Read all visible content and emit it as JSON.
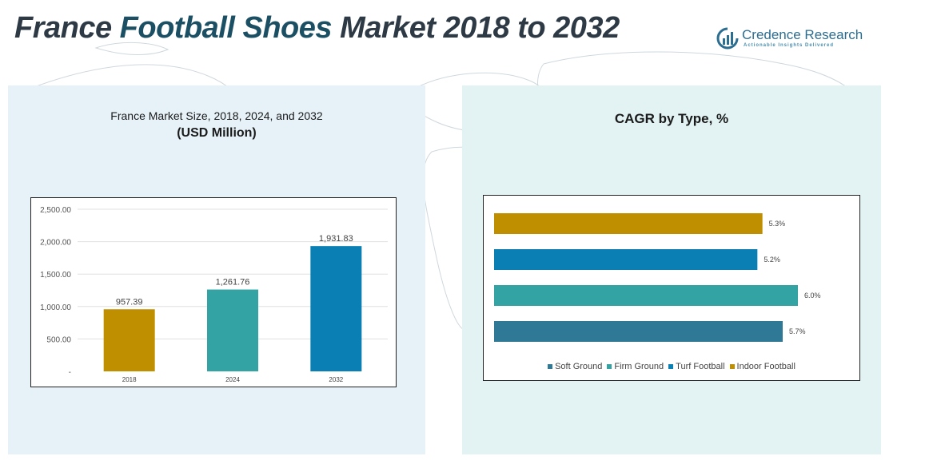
{
  "header": {
    "title_part1": "France ",
    "title_part2": "Football Shoes",
    "title_part3": " Market 2018 to 2032"
  },
  "logo": {
    "name": "Credence Research",
    "tagline": "Actionable Insights Delivered",
    "icon": "bar-chart-logo-icon",
    "color": "#2c6e91"
  },
  "left_panel": {
    "title_line1": "France Market Size, 2018, 2024, and 2032",
    "title_line2": "(USD Million)"
  },
  "right_panel": {
    "title": "CAGR by Type, %"
  },
  "chart_data": [
    {
      "type": "bar",
      "orientation": "vertical",
      "categories": [
        "2018",
        "2024",
        "2032"
      ],
      "values": [
        957.39,
        1261.76,
        1931.83
      ],
      "value_labels": [
        "957.39",
        "1,261.76",
        "1,931.83"
      ],
      "colors": [
        "#bf8f00",
        "#33a3a3",
        "#0a7fb3"
      ],
      "ylim": [
        0,
        2500
      ],
      "yticks": [
        0,
        500,
        1000,
        1500,
        2000,
        2500
      ],
      "ytick_labels": [
        "-",
        "500.00",
        "1,000.00",
        "1,500.00",
        "2,000.00",
        "2,500.00"
      ],
      "grid": true
    },
    {
      "type": "bar",
      "orientation": "horizontal",
      "categories": [
        "Indoor Football",
        "Turf Football",
        "Firm Ground",
        "Soft Ground"
      ],
      "values": [
        5.3,
        5.2,
        6.0,
        5.7
      ],
      "value_labels": [
        "5.3%",
        "5.2%",
        "6.0%",
        "5.7%"
      ],
      "colors": [
        "#bf8f00",
        "#0a7fb3",
        "#33a3a3",
        "#2f7896"
      ],
      "xlim": [
        0,
        6.3
      ],
      "legend": [
        "Soft Ground",
        "Firm Ground",
        "Turf Football",
        "Indoor Football"
      ],
      "legend_colors": [
        "#2f7896",
        "#33a3a3",
        "#0a7fb3",
        "#bf8f00"
      ],
      "legend_position": "bottom"
    }
  ]
}
